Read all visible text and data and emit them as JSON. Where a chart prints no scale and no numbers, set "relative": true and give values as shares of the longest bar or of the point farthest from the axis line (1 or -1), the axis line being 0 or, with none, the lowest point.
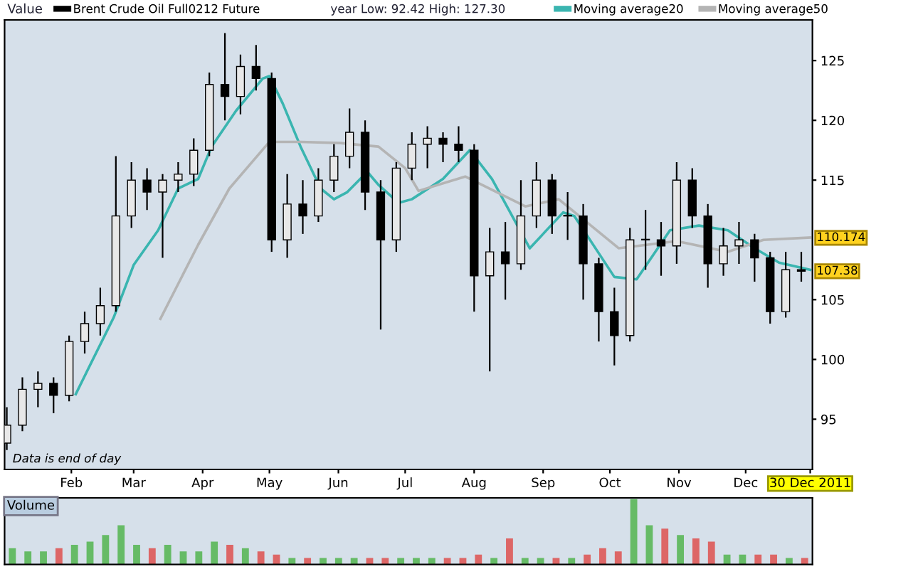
{
  "chart_data": [
    {
      "type": "candlestick",
      "legend_title": "Value",
      "legend": "top left",
      "annotations": [
        "year Low: 92.42 High: 127.30",
        "Data is end of day",
        {
          "text": "110.174",
          "x": "2011-12-30",
          "y": 110.174
        },
        {
          "text": "107.38",
          "x": "2011-12-30",
          "y": 107.38
        }
      ],
      "xlim": [
        "2011-01-02",
        "2011-12-31"
      ],
      "ylim": [
        90.8,
        128.4
      ],
      "xticks": [
        {
          "value": "2011-02-01",
          "label": "Feb"
        },
        {
          "value": "2011-03-01",
          "label": "Mar"
        },
        {
          "value": "2011-04-01",
          "label": "Apr"
        },
        {
          "value": "2011-05-01",
          "label": "May"
        },
        {
          "value": "2011-06-01",
          "label": "Jun"
        },
        {
          "value": "2011-07-01",
          "label": "Jul"
        },
        {
          "value": "2011-08-01",
          "label": "Aug"
        },
        {
          "value": "2011-09-01",
          "label": "Sep"
        },
        {
          "value": "2011-10-01",
          "label": "Oct"
        },
        {
          "value": "2011-11-01",
          "label": "Nov"
        },
        {
          "value": "2011-12-01",
          "label": "Dec"
        },
        {
          "value": "2011-12-30",
          "label": "30 Dec 2011"
        }
      ],
      "yticks": [
        95,
        100,
        105,
        115,
        120,
        125
      ],
      "series": [
        {
          "type": "candlestick",
          "name": "Brent Crude Oil Full0212 Future",
          "color": "#000000",
          "x": [
            "2011-01-03",
            "2011-01-10",
            "2011-01-17",
            "2011-01-24",
            "2011-01-31",
            "2011-02-07",
            "2011-02-14",
            "2011-02-21",
            "2011-02-28",
            "2011-03-07",
            "2011-03-14",
            "2011-03-21",
            "2011-03-28",
            "2011-04-04",
            "2011-04-11",
            "2011-04-18",
            "2011-04-25",
            "2011-05-02",
            "2011-05-09",
            "2011-05-16",
            "2011-05-23",
            "2011-05-30",
            "2011-06-06",
            "2011-06-13",
            "2011-06-20",
            "2011-06-27",
            "2011-07-04",
            "2011-07-11",
            "2011-07-18",
            "2011-07-25",
            "2011-08-01",
            "2011-08-08",
            "2011-08-15",
            "2011-08-22",
            "2011-08-29",
            "2011-09-05",
            "2011-09-12",
            "2011-09-19",
            "2011-09-26",
            "2011-10-03",
            "2011-10-10",
            "2011-10-17",
            "2011-10-24",
            "2011-10-31",
            "2011-11-07",
            "2011-11-14",
            "2011-11-21",
            "2011-11-28",
            "2011-12-05",
            "2011-12-12",
            "2011-12-19",
            "2011-12-26"
          ],
          "ohlc": [
            [
              93,
              96,
              92.42,
              94.5
            ],
            [
              94.5,
              98.5,
              94,
              97.5
            ],
            [
              97.5,
              99,
              96,
              98
            ],
            [
              98,
              98.5,
              95.5,
              97
            ],
            [
              97,
              102,
              96.5,
              101.5
            ],
            [
              101.5,
              104,
              100.5,
              103
            ],
            [
              103,
              106,
              102,
              104.5
            ],
            [
              104.5,
              117,
              104,
              112
            ],
            [
              112,
              116.5,
              111,
              115
            ],
            [
              115,
              116,
              112.5,
              114
            ],
            [
              114,
              115.5,
              108.5,
              115
            ],
            [
              115,
              116.5,
              114,
              115.5
            ],
            [
              115.5,
              118.5,
              114.5,
              117.5
            ],
            [
              117.5,
              124,
              117,
              123
            ],
            [
              123,
              127.3,
              120,
              122
            ],
            [
              122,
              125.5,
              120.5,
              124.5
            ],
            [
              124.5,
              126.3,
              122.5,
              123.5
            ],
            [
              123.5,
              124,
              109,
              110
            ],
            [
              110,
              115.5,
              108.5,
              113
            ],
            [
              113,
              115,
              110.5,
              112
            ],
            [
              112,
              116,
              111.5,
              115
            ],
            [
              115,
              118,
              114,
              117
            ],
            [
              117,
              121,
              116,
              119
            ],
            [
              119,
              120,
              112.5,
              114
            ],
            [
              114,
              115,
              102.5,
              110
            ],
            [
              110,
              116.5,
              109,
              116
            ],
            [
              116,
              119,
              115,
              118
            ],
            [
              118,
              119.5,
              116,
              118.5
            ],
            [
              118.5,
              119,
              116.5,
              118
            ],
            [
              118,
              119.5,
              116.5,
              117.5
            ],
            [
              117.5,
              118,
              104,
              107
            ],
            [
              107,
              111,
              99,
              109
            ],
            [
              109,
              111.5,
              105,
              108
            ],
            [
              108,
              115,
              107.5,
              112
            ],
            [
              112,
              116.5,
              111,
              115
            ],
            [
              115,
              115.5,
              110.5,
              112
            ],
            [
              112,
              114,
              110,
              112
            ],
            [
              112,
              113,
              105,
              108
            ],
            [
              108,
              108.5,
              101.5,
              104
            ],
            [
              104,
              106,
              99.5,
              102
            ],
            [
              102,
              111,
              101.5,
              110
            ],
            [
              110,
              112.5,
              107.5,
              110
            ],
            [
              110,
              111.5,
              107,
              109.5
            ],
            [
              109.5,
              116.5,
              108,
              115
            ],
            [
              115,
              116,
              111,
              112
            ],
            [
              112,
              113,
              106,
              108
            ],
            [
              108,
              111,
              107,
              109.5
            ],
            [
              109.5,
              111.5,
              108,
              110
            ],
            [
              110,
              110.5,
              106.5,
              108.5
            ],
            [
              108.5,
              109,
              103,
              104
            ],
            [
              104,
              109,
              103.5,
              107.5
            ],
            [
              107.5,
              109,
              106.5,
              107.38
            ]
          ]
        },
        {
          "type": "line",
          "name": "Moving average20",
          "color": "#3ab5b0",
          "x": [
            "2011-02-03",
            "2011-02-08",
            "2011-02-20",
            "2011-03-01",
            "2011-03-12",
            "2011-03-21",
            "2011-03-30",
            "2011-04-05",
            "2011-04-16",
            "2011-04-28",
            "2011-05-01",
            "2011-05-07",
            "2011-05-15",
            "2011-05-24",
            "2011-05-30",
            "2011-06-05",
            "2011-06-14",
            "2011-06-19",
            "2011-06-28",
            "2011-07-04",
            "2011-07-18",
            "2011-07-30",
            "2011-08-09",
            "2011-08-26",
            "2011-09-10",
            "2011-09-15",
            "2011-10-03",
            "2011-10-13",
            "2011-10-28",
            "2011-11-10",
            "2011-11-23",
            "2011-12-05",
            "2011-12-16",
            "2011-12-30"
          ],
          "values": [
            97.1,
            99,
            103.5,
            107.9,
            110.8,
            114.3,
            115.1,
            117.8,
            120.8,
            123.5,
            123.7,
            121.4,
            117.8,
            114.3,
            113.4,
            114,
            115.7,
            114.6,
            113.1,
            113.4,
            115.1,
            117.5,
            115.1,
            109.3,
            112.3,
            112,
            106.9,
            106.7,
            110.8,
            111.2,
            110.8,
            109.3,
            108.1,
            107.5
          ]
        },
        {
          "type": "line",
          "name": "Moving average50",
          "color": "#b4b4b4",
          "x": [
            "2011-03-13",
            "2011-03-30",
            "2011-04-13",
            "2011-05-01",
            "2011-05-15",
            "2011-06-02",
            "2011-06-19",
            "2011-07-01",
            "2011-07-07",
            "2011-07-28",
            "2011-08-24",
            "2011-09-08",
            "2011-10-05",
            "2011-10-31",
            "2011-11-23",
            "2011-12-09",
            "2011-12-30"
          ],
          "values": [
            103.4,
            109.6,
            114.3,
            118.2,
            118.2,
            118.1,
            117.8,
            116,
            114.1,
            115.3,
            112.8,
            113.4,
            109.3,
            109.9,
            109,
            110,
            110.2
          ]
        }
      ]
    },
    {
      "type": "bar",
      "title": "Volume",
      "relative": true,
      "categories": [
        null,
        null,
        null,
        null,
        null,
        null,
        null,
        null,
        null,
        null,
        null,
        null,
        null,
        null,
        null,
        null,
        null,
        null,
        null,
        null,
        null,
        null,
        null,
        null,
        null,
        null,
        null,
        null,
        null,
        null,
        null,
        null,
        null,
        null,
        null,
        null,
        null,
        null,
        null,
        null,
        null,
        null,
        null,
        null,
        null,
        null,
        null,
        null,
        null,
        null,
        null,
        null
      ],
      "values": [
        0.25,
        0.2,
        0.2,
        0.25,
        0.3,
        0.35,
        0.45,
        0.6,
        0.3,
        0.25,
        0.3,
        0.2,
        0.2,
        0.35,
        0.3,
        0.25,
        0.2,
        0.15,
        0.1,
        0.1,
        0.1,
        0.1,
        0.1,
        0.1,
        0.1,
        0.1,
        0.1,
        0.1,
        0.1,
        0.1,
        0.15,
        0.1,
        0.4,
        0.1,
        0.1,
        0.1,
        0.1,
        0.15,
        0.25,
        0.2,
        1,
        0.6,
        0.55,
        0.45,
        0.4,
        0.35,
        0.15,
        0.15,
        0.15,
        0.15,
        0.1,
        0.1
      ],
      "colors": [
        "#66bb66",
        "#66bb66",
        "#66bb66",
        "#dd6666",
        "#66bb66",
        "#66bb66",
        "#66bb66",
        "#66bb66",
        "#66bb66",
        "#dd6666",
        "#66bb66",
        "#66bb66",
        "#66bb66",
        "#66bb66",
        "#dd6666",
        "#66bb66",
        "#dd6666",
        "#dd6666",
        "#66bb66",
        "#dd6666",
        "#66bb66",
        "#66bb66",
        "#66bb66",
        "#dd6666",
        "#dd6666",
        "#66bb66",
        "#66bb66",
        "#66bb66",
        "#dd6666",
        "#dd6666",
        "#dd6666",
        "#66bb66",
        "#dd6666",
        "#66bb66",
        "#66bb66",
        "#dd6666",
        "#66bb66",
        "#dd6666",
        "#dd6666",
        "#dd6666",
        "#66bb66",
        "#66bb66",
        "#dd6666",
        "#66bb66",
        "#dd6666",
        "#dd6666",
        "#66bb66",
        "#66bb66",
        "#dd6666",
        "#dd6666",
        "#66bb66",
        "#dd6666"
      ]
    }
  ]
}
